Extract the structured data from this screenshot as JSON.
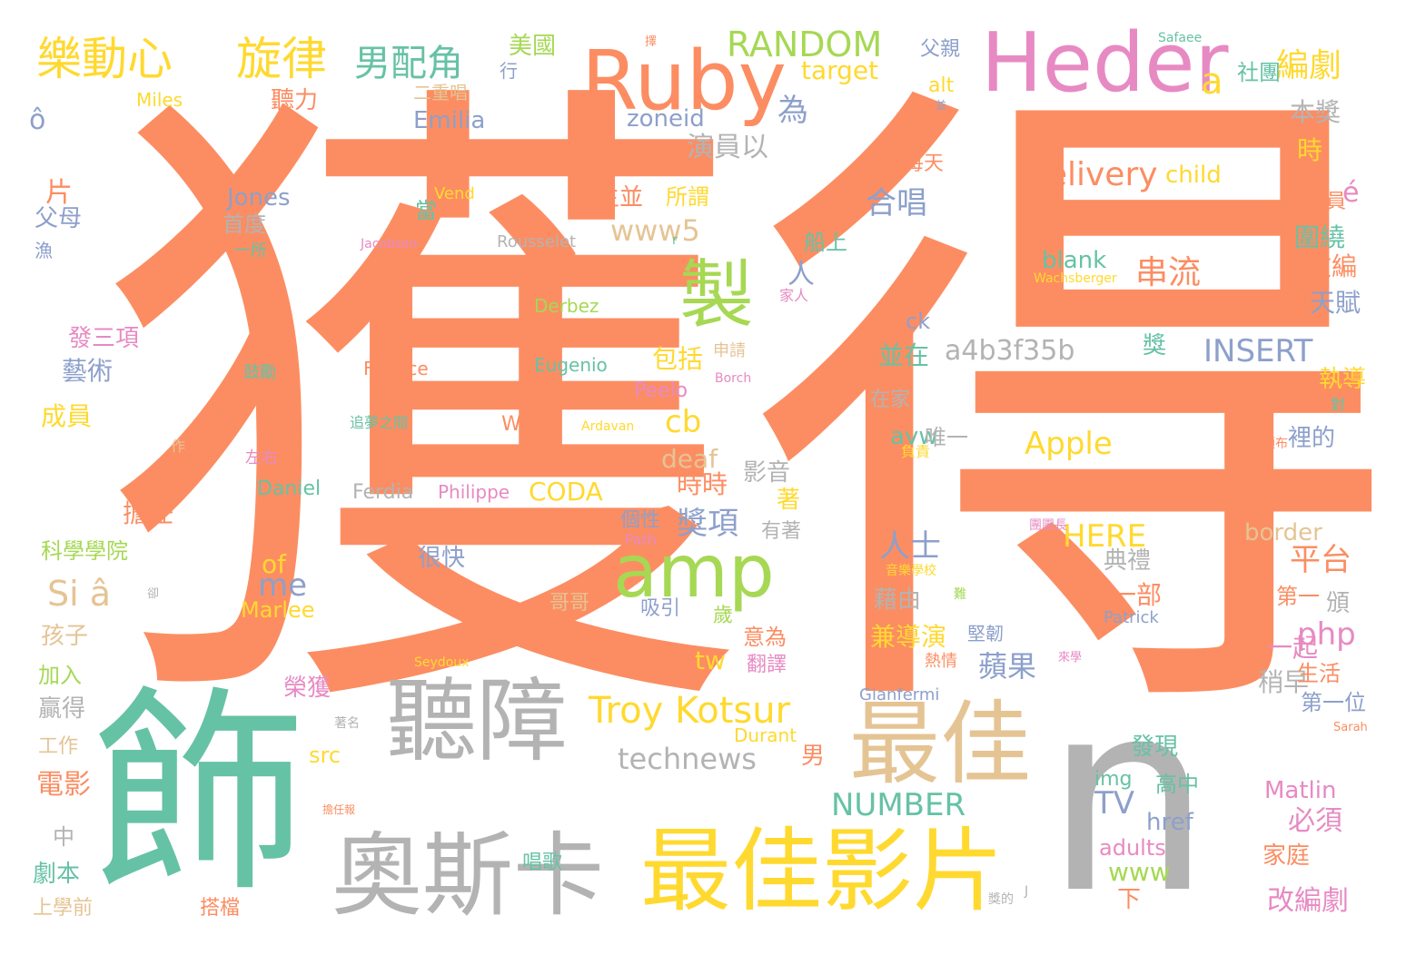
{
  "colors": {
    "orange": "#fc8d62",
    "teal": "#66c2a5",
    "blue": "#8da0cb",
    "pink": "#e78ac3",
    "green": "#a6d854",
    "yellow": "#ffd92f",
    "tan": "#e5c494",
    "gray": "#b3b3b3"
  },
  "words": [
    {
      "text": "獲得",
      "color": "orange"
    },
    {
      "text": "飾",
      "color": "teal"
    },
    {
      "text": "n",
      "color": "gray"
    },
    {
      "text": "Heder",
      "color": "pink"
    },
    {
      "text": "Ruby",
      "color": "orange"
    },
    {
      "text": "聽障",
      "color": "gray"
    },
    {
      "text": "最佳",
      "color": "tan"
    },
    {
      "text": "奧斯卡",
      "color": "gray"
    },
    {
      "text": "最佳影片",
      "color": "yellow"
    },
    {
      "text": "amp",
      "color": "green"
    },
    {
      "text": "製",
      "color": "green"
    },
    {
      "text": "樂動心",
      "color": "yellow"
    },
    {
      "text": "旋律",
      "color": "yellow"
    },
    {
      "text": "男配角",
      "color": "teal"
    },
    {
      "text": "RANDOM",
      "color": "green"
    },
    {
      "text": "美國",
      "color": "green"
    },
    {
      "text": "編劇",
      "color": "yellow"
    },
    {
      "text": "a",
      "color": "yellow"
    },
    {
      "text": "Troy Kotsur",
      "color": "yellow"
    },
    {
      "text": "technews",
      "color": "gray"
    },
    {
      "text": "a4b3f35b",
      "color": "gray"
    },
    {
      "text": "INSERT",
      "color": "blue"
    },
    {
      "text": "delivery",
      "color": "orange"
    },
    {
      "text": "child",
      "color": "yellow"
    },
    {
      "text": "Apple",
      "color": "yellow"
    },
    {
      "text": "串流",
      "color": "orange"
    },
    {
      "text": "NUMBER",
      "color": "teal"
    },
    {
      "text": "HERE",
      "color": "yellow"
    },
    {
      "text": "www5",
      "color": "tan"
    },
    {
      "text": "Si â",
      "color": "tan"
    },
    {
      "text": "Emilia",
      "color": "blue"
    },
    {
      "text": "zoneid",
      "color": "blue"
    },
    {
      "text": "Jones",
      "color": "blue"
    },
    {
      "text": "Rousselet",
      "color": "gray"
    },
    {
      "text": "Pictures",
      "color": "orange"
    },
    {
      "text": "Derbez",
      "color": "green"
    },
    {
      "text": "Fabrice",
      "color": "orange"
    },
    {
      "text": "Eugenio",
      "color": "teal"
    },
    {
      "text": "Peelo",
      "color": "pink"
    },
    {
      "text": "Walsh",
      "color": "orange"
    },
    {
      "text": "Daniel",
      "color": "teal"
    },
    {
      "text": "Ferdia",
      "color": "gray"
    },
    {
      "text": "Philippe",
      "color": "pink"
    },
    {
      "text": "CODA",
      "color": "yellow"
    },
    {
      "text": "Marlee",
      "color": "yellow"
    },
    {
      "text": "Matlin",
      "color": "pink"
    },
    {
      "text": "Patrick",
      "color": "blue"
    },
    {
      "text": "Gianfermi",
      "color": "blue"
    },
    {
      "text": "Durant",
      "color": "yellow"
    },
    {
      "text": "Seydoux",
      "color": "yellow"
    },
    {
      "text": "Sarah",
      "color": "orange"
    },
    {
      "text": "Safaee",
      "color": "teal"
    },
    {
      "text": "Miles",
      "color": "yellow"
    },
    {
      "text": "Vend",
      "color": "yellow"
    },
    {
      "text": "Jacobsen",
      "color": "pink"
    },
    {
      "text": "Wachsberger",
      "color": "yellow"
    },
    {
      "text": "Ardavan",
      "color": "yellow"
    },
    {
      "text": "Borch",
      "color": "pink"
    },
    {
      "text": "target",
      "color": "yellow"
    },
    {
      "text": "alt",
      "color": "yellow"
    },
    {
      "text": "blank",
      "color": "teal"
    },
    {
      "text": "ck",
      "color": "blue"
    },
    {
      "text": "avw",
      "color": "teal"
    },
    {
      "text": "cb",
      "color": "yellow"
    },
    {
      "text": "deaf",
      "color": "tan"
    },
    {
      "text": "php",
      "color": "pink"
    },
    {
      "text": "tw",
      "color": "yellow"
    },
    {
      "text": "TV",
      "color": "blue"
    },
    {
      "text": "href",
      "color": "blue"
    },
    {
      "text": "adults",
      "color": "pink"
    },
    {
      "text": "www",
      "color": "green"
    },
    {
      "text": "img",
      "color": "teal"
    },
    {
      "text": "src",
      "color": "yellow"
    },
    {
      "text": "me",
      "color": "blue"
    },
    {
      "text": "of",
      "color": "yellow"
    },
    {
      "text": "border",
      "color": "tan"
    },
    {
      "text": "Path",
      "color": "pink"
    },
    {
      "text": "ô",
      "color": "blue"
    },
    {
      "text": "é",
      "color": "pink"
    },
    {
      "text": "J",
      "color": "gray"
    },
    {
      "text": "r",
      "color": "teal"
    },
    {
      "text": "片",
      "color": "orange"
    },
    {
      "text": "父母",
      "color": "blue"
    },
    {
      "text": "漁",
      "color": "blue"
    },
    {
      "text": "發三項",
      "color": "pink"
    },
    {
      "text": "藝術",
      "color": "blue"
    },
    {
      "text": "成員",
      "color": "yellow"
    },
    {
      "text": "擔任",
      "color": "orange"
    },
    {
      "text": "科學學院",
      "color": "green"
    },
    {
      "text": "孩子",
      "color": "tan"
    },
    {
      "text": "加入",
      "color": "green"
    },
    {
      "text": "贏得",
      "color": "gray"
    },
    {
      "text": "工作",
      "color": "tan"
    },
    {
      "text": "電影",
      "color": "orange"
    },
    {
      "text": "中",
      "color": "gray"
    },
    {
      "text": "劇本",
      "color": "teal"
    },
    {
      "text": "上學前",
      "color": "tan"
    },
    {
      "text": "搭檔",
      "color": "orange"
    },
    {
      "text": "唱歌",
      "color": "teal"
    },
    {
      "text": "二重唱",
      "color": "tan"
    },
    {
      "text": "聽力",
      "color": "orange"
    },
    {
      "text": "首度",
      "color": "gray"
    },
    {
      "text": "一所",
      "color": "teal"
    },
    {
      "text": "鼓勵",
      "color": "teal"
    },
    {
      "text": "追夢之間",
      "color": "teal"
    },
    {
      "text": "作",
      "color": "tan"
    },
    {
      "text": "左右",
      "color": "pink"
    },
    {
      "text": "榮獲",
      "color": "pink"
    },
    {
      "text": "著名",
      "color": "gray"
    },
    {
      "text": "擔任報",
      "color": "orange"
    },
    {
      "text": "為",
      "color": "blue"
    },
    {
      "text": "演員以",
      "color": "gray"
    },
    {
      "text": "為主並",
      "color": "orange"
    },
    {
      "text": "所謂",
      "color": "yellow"
    },
    {
      "text": "當",
      "color": "teal"
    },
    {
      "text": "人",
      "color": "blue"
    },
    {
      "text": "合唱",
      "color": "blue"
    },
    {
      "text": "船上",
      "color": "teal"
    },
    {
      "text": "家人",
      "color": "pink"
    },
    {
      "text": "包括",
      "color": "yellow"
    },
    {
      "text": "申請",
      "color": "tan"
    },
    {
      "text": "並在",
      "color": "teal"
    },
    {
      "text": "在家",
      "color": "gray"
    },
    {
      "text": "唯一",
      "color": "gray"
    },
    {
      "text": "負責",
      "color": "yellow"
    },
    {
      "text": "時時",
      "color": "orange"
    },
    {
      "text": "影音",
      "color": "gray"
    },
    {
      "text": "著",
      "color": "yellow"
    },
    {
      "text": "獎項",
      "color": "blue"
    },
    {
      "text": "個性",
      "color": "blue"
    },
    {
      "text": "有著",
      "color": "gray"
    },
    {
      "text": "很快",
      "color": "blue"
    },
    {
      "text": "人士",
      "color": "blue"
    },
    {
      "text": "吸引",
      "color": "blue"
    },
    {
      "text": "歲",
      "color": "green"
    },
    {
      "text": "意為",
      "color": "orange"
    },
    {
      "text": "翻譯",
      "color": "pink"
    },
    {
      "text": "哥哥",
      "color": "tan"
    },
    {
      "text": "藉由",
      "color": "gray"
    },
    {
      "text": "兼導演",
      "color": "yellow"
    },
    {
      "text": "堅韌",
      "color": "blue"
    },
    {
      "text": "熱情",
      "color": "orange"
    },
    {
      "text": "屆",
      "color": "orange"
    },
    {
      "text": "蘋果",
      "color": "blue"
    },
    {
      "text": "第一部",
      "color": "orange"
    },
    {
      "text": "典禮",
      "color": "gray"
    },
    {
      "text": "平台",
      "color": "orange"
    },
    {
      "text": "音樂學校",
      "color": "yellow"
    },
    {
      "text": "難",
      "color": "green"
    },
    {
      "text": "來學",
      "color": "pink"
    },
    {
      "text": "男",
      "color": "orange"
    },
    {
      "text": "高中",
      "color": "teal"
    },
    {
      "text": "發現",
      "color": "teal"
    },
    {
      "text": "必須",
      "color": "pink"
    },
    {
      "text": "獎的",
      "color": "gray"
    },
    {
      "text": "下",
      "color": "orange"
    },
    {
      "text": "改編劇",
      "color": "pink"
    },
    {
      "text": "家庭",
      "color": "orange"
    },
    {
      "text": "第一位",
      "color": "blue"
    },
    {
      "text": "稍早",
      "color": "gray"
    },
    {
      "text": "生活",
      "color": "orange"
    },
    {
      "text": "一起",
      "color": "pink"
    },
    {
      "text": "頒",
      "color": "gray"
    },
    {
      "text": "第一",
      "color": "orange"
    },
    {
      "text": "裡的",
      "color": "blue"
    },
    {
      "text": "頒布",
      "color": "orange"
    },
    {
      "text": "對",
      "color": "teal"
    },
    {
      "text": "執導",
      "color": "yellow"
    },
    {
      "text": "天賦",
      "color": "blue"
    },
    {
      "text": "改編",
      "color": "orange"
    },
    {
      "text": "圍繞",
      "color": "teal"
    },
    {
      "text": "演員",
      "color": "orange"
    },
    {
      "text": "時",
      "color": "yellow"
    },
    {
      "text": "本獎",
      "color": "gray"
    },
    {
      "text": "獎",
      "color": "teal"
    },
    {
      "text": "每天",
      "color": "orange"
    },
    {
      "text": "父親",
      "color": "blue"
    },
    {
      "text": "社團",
      "color": "teal"
    },
    {
      "text": "並",
      "color": "blue"
    },
    {
      "text": "行",
      "color": "blue"
    },
    {
      "text": "團團長",
      "color": "pink"
    },
    {
      "text": "卻",
      "color": "gray"
    },
    {
      "text": "擇",
      "color": "orange"
    },
    {
      "text": "韓國",
      "color": "yellow"
    }
  ]
}
